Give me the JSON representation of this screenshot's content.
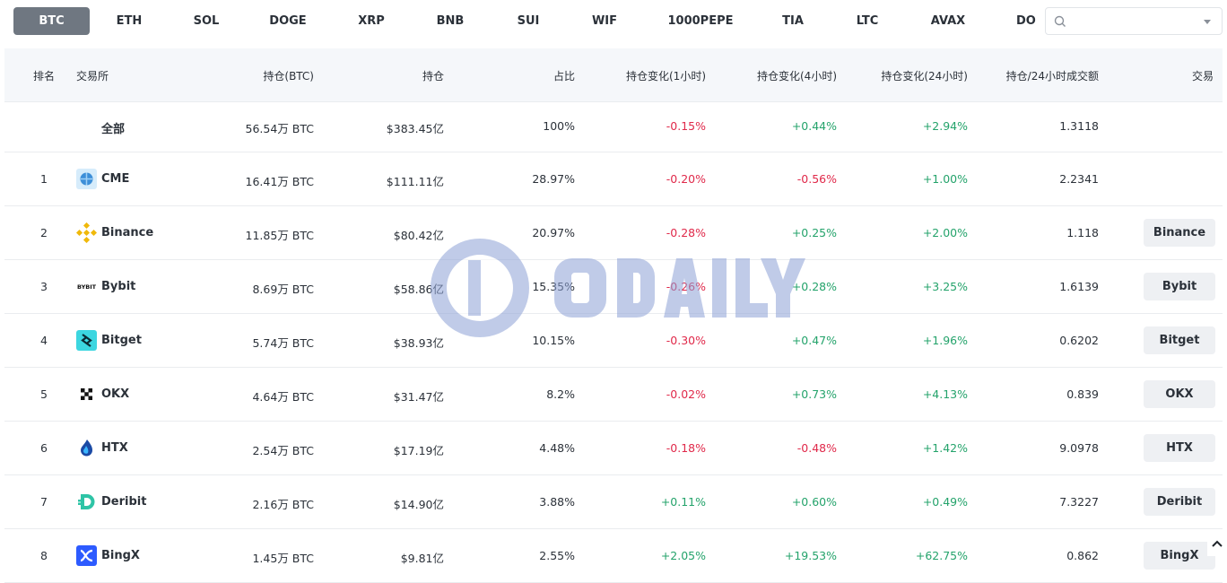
{
  "tabs": [
    {
      "label": "BTC",
      "active": true
    },
    {
      "label": "ETH"
    },
    {
      "label": "SOL"
    },
    {
      "label": "DOGE"
    },
    {
      "label": "XRP"
    },
    {
      "label": "BNB"
    },
    {
      "label": "SUI"
    },
    {
      "label": "WIF"
    },
    {
      "label": "1000PEPE"
    },
    {
      "label": "TIA"
    },
    {
      "label": "LTC"
    },
    {
      "label": "AVAX"
    },
    {
      "label": "DO"
    }
  ],
  "search": {
    "placeholder": "",
    "icon": "search-icon"
  },
  "table": {
    "headers": {
      "rank": "排名",
      "exchange": "交易所",
      "oi_btc": "持仓(BTC)",
      "oi": "持仓",
      "share": "占比",
      "chg_1h": "持仓变化(1小时)",
      "chg_4h": "持仓变化(4小时)",
      "chg_24h": "持仓变化(24小时)",
      "oi_vol": "持仓/24小时成交额",
      "trade": "交易"
    },
    "total": {
      "name": "全部",
      "oi_btc": "56.54万 BTC",
      "oi": "$383.45亿",
      "share": "100%",
      "chg_1h": "-0.15%",
      "chg_4h": "+0.44%",
      "chg_24h": "+2.94%",
      "oi_vol": "1.3118"
    },
    "rows": [
      {
        "rank": "1",
        "name": "CME",
        "oi_btc": "16.41万 BTC",
        "oi": "$111.11亿",
        "share": "28.97%",
        "chg_1h": "-0.20%",
        "chg_4h": "-0.56%",
        "chg_24h": "+1.00%",
        "oi_vol": "2.2341",
        "trade": "",
        "logo_color": "#5aa8e6"
      },
      {
        "rank": "2",
        "name": "Binance",
        "oi_btc": "11.85万 BTC",
        "oi": "$80.42亿",
        "share": "20.97%",
        "chg_1h": "-0.28%",
        "chg_4h": "+0.25%",
        "chg_24h": "+2.00%",
        "oi_vol": "1.118",
        "trade": "Binance",
        "logo_color": "#f0b90b"
      },
      {
        "rank": "3",
        "name": "Bybit",
        "oi_btc": "8.69万 BTC",
        "oi": "$58.86亿",
        "share": "15.35%",
        "chg_1h": "-0.26%",
        "chg_4h": "+0.28%",
        "chg_24h": "+3.25%",
        "oi_vol": "1.6139",
        "trade": "Bybit",
        "logo_color": "#ffffff"
      },
      {
        "rank": "4",
        "name": "Bitget",
        "oi_btc": "5.74万 BTC",
        "oi": "$38.93亿",
        "share": "10.15%",
        "chg_1h": "-0.30%",
        "chg_4h": "+0.47%",
        "chg_24h": "+1.96%",
        "oi_vol": "0.6202",
        "trade": "Bitget",
        "logo_color": "#3cd6e0"
      },
      {
        "rank": "5",
        "name": "OKX",
        "oi_btc": "4.64万 BTC",
        "oi": "$31.47亿",
        "share": "8.2%",
        "chg_1h": "-0.02%",
        "chg_4h": "+0.73%",
        "chg_24h": "+4.13%",
        "oi_vol": "0.839",
        "trade": "OKX",
        "logo_color": "#ffffff"
      },
      {
        "rank": "6",
        "name": "HTX",
        "oi_btc": "2.54万 BTC",
        "oi": "$17.19亿",
        "share": "4.48%",
        "chg_1h": "-0.18%",
        "chg_4h": "-0.48%",
        "chg_24h": "+1.42%",
        "oi_vol": "9.0978",
        "trade": "HTX",
        "logo_color": "#ffffff"
      },
      {
        "rank": "7",
        "name": "Deribit",
        "oi_btc": "2.16万 BTC",
        "oi": "$14.90亿",
        "share": "3.88%",
        "chg_1h": "+0.11%",
        "chg_4h": "+0.60%",
        "chg_24h": "+0.49%",
        "oi_vol": "7.3227",
        "trade": "Deribit",
        "logo_color": "#ffffff"
      },
      {
        "rank": "8",
        "name": "BingX",
        "oi_btc": "1.45万 BTC",
        "oi": "$9.81亿",
        "share": "2.55%",
        "chg_1h": "+2.05%",
        "chg_4h": "+19.53%",
        "chg_24h": "+62.75%",
        "oi_vol": "0.862",
        "trade": "BingX",
        "logo_color": "#2d5bff"
      }
    ]
  },
  "watermark": {
    "text": "ODAILY"
  },
  "colors": {
    "positive": "#24a36b",
    "negative": "#e0294a",
    "active_tab": "#6f7781"
  }
}
